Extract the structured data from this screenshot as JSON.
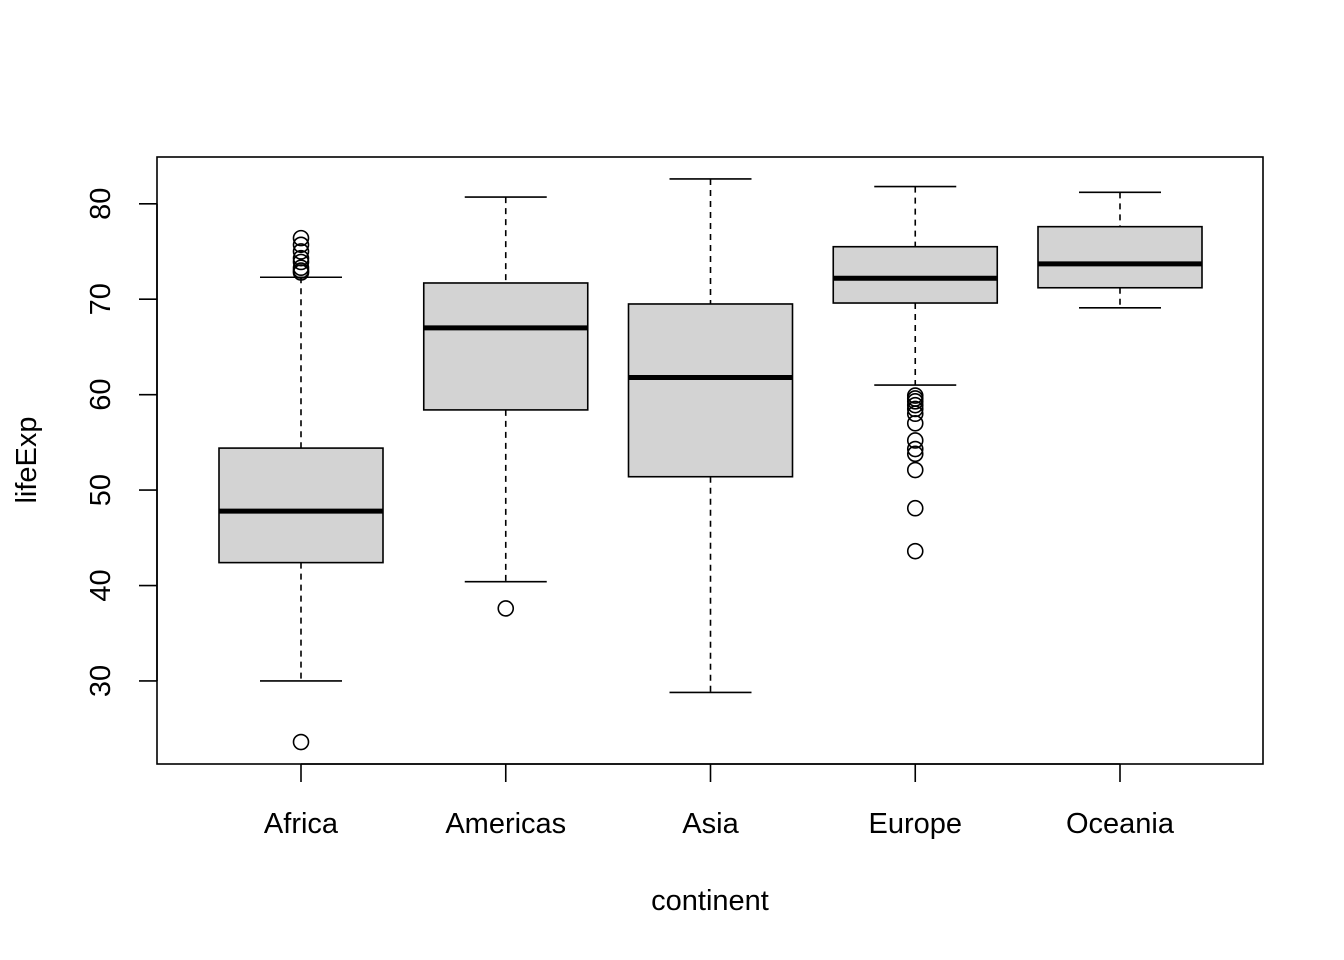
{
  "chart_data": {
    "type": "boxplot",
    "xlabel": "continent",
    "ylabel": "lifeExp",
    "ylim": [
      21.3,
      84.9
    ],
    "yticks": [
      30,
      40,
      50,
      60,
      70,
      80
    ],
    "categories": [
      "Africa",
      "Americas",
      "Asia",
      "Europe",
      "Oceania"
    ],
    "box_fill": "#d3d3d3",
    "boxes": [
      {
        "category": "Africa",
        "whisker_low": 30.0,
        "q1": 42.4,
        "median": 47.8,
        "q3": 54.4,
        "whisker_high": 72.3,
        "outliers": [
          23.6,
          72.8,
          73.0,
          73.3,
          73.9,
          74.3,
          75.0,
          75.7,
          76.4
        ]
      },
      {
        "category": "Americas",
        "whisker_low": 40.4,
        "q1": 58.4,
        "median": 67.0,
        "q3": 71.7,
        "whisker_high": 80.7,
        "outliers": [
          37.6
        ]
      },
      {
        "category": "Asia",
        "whisker_low": 28.8,
        "q1": 51.4,
        "median": 61.8,
        "q3": 69.5,
        "whisker_high": 82.6,
        "outliers": []
      },
      {
        "category": "Europe",
        "whisker_low": 61.0,
        "q1": 69.6,
        "median": 72.2,
        "q3": 75.5,
        "whisker_high": 81.8,
        "outliers": [
          43.6,
          48.1,
          52.1,
          53.8,
          54.3,
          55.2,
          57.0,
          58.0,
          58.5,
          58.9,
          59.3,
          59.6,
          59.9
        ]
      },
      {
        "category": "Oceania",
        "whisker_low": 69.1,
        "q1": 71.2,
        "median": 73.7,
        "q3": 77.6,
        "whisker_high": 81.2,
        "outliers": []
      }
    ]
  }
}
